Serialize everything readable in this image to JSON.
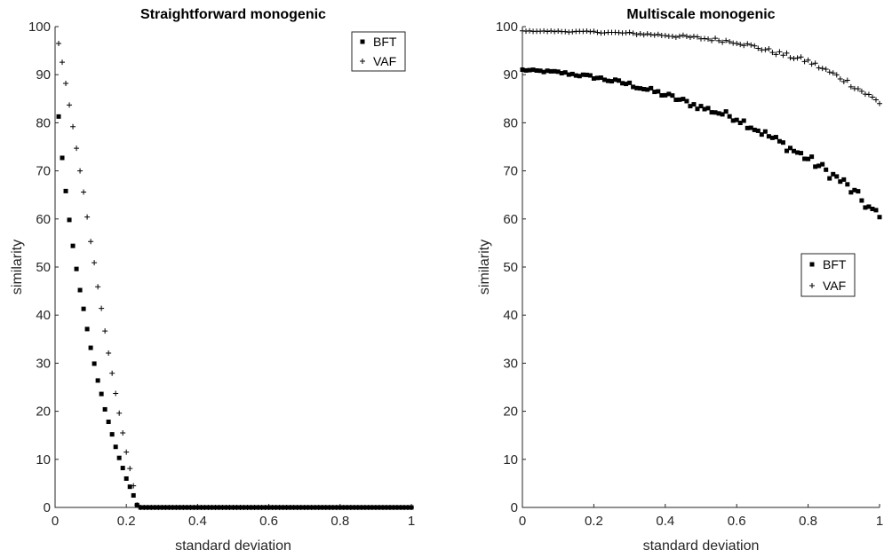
{
  "chart_data": [
    {
      "type": "scatter",
      "title": "Straightforward monogenic",
      "xlabel": "standard deviation",
      "ylabel": "similarity",
      "xlim": [
        0,
        1
      ],
      "ylim": [
        0,
        100
      ],
      "xticks": [
        "0",
        "0.2",
        "0.4",
        "0.6",
        "0.8",
        "1"
      ],
      "yticks": [
        "0",
        "10",
        "20",
        "30",
        "40",
        "50",
        "60",
        "70",
        "80",
        "90",
        "100"
      ],
      "legend_position": "top-right",
      "series": [
        {
          "name": "BFT",
          "marker": "square",
          "x": [
            0.01,
            0.02,
            0.03,
            0.04,
            0.05,
            0.06,
            0.07,
            0.08,
            0.09,
            0.1,
            0.11,
            0.12,
            0.13,
            0.14,
            0.15,
            0.16,
            0.17,
            0.18,
            0.19,
            0.2,
            0.21,
            0.22,
            0.23
          ],
          "y": [
            81.3,
            72.7,
            65.8,
            59.8,
            54.4,
            49.6,
            45.2,
            41.3,
            37.1,
            33.2,
            29.9,
            26.4,
            23.6,
            20.4,
            17.8,
            15.2,
            12.6,
            10.3,
            8.2,
            6.0,
            4.3,
            2.5,
            0.5
          ]
        },
        {
          "name": "VAF",
          "marker": "plus",
          "x": [
            0.01,
            0.02,
            0.03,
            0.04,
            0.05,
            0.06,
            0.07,
            0.08,
            0.09,
            0.1,
            0.11,
            0.12,
            0.13,
            0.14,
            0.15,
            0.16,
            0.17,
            0.18,
            0.19,
            0.2,
            0.21,
            0.22,
            0.23
          ],
          "y": [
            96.5,
            92.6,
            88.2,
            83.7,
            79.2,
            74.7,
            70.0,
            65.6,
            60.4,
            55.3,
            50.9,
            45.9,
            41.4,
            36.7,
            32.1,
            27.9,
            23.7,
            19.6,
            15.5,
            11.5,
            8.1,
            4.5,
            0.5
          ]
        }
      ],
      "tail": {
        "from": 0.24,
        "to": 1.0,
        "step": 0.01,
        "value": 0
      }
    },
    {
      "type": "scatter",
      "title": "Multiscale monogenic",
      "xlabel": "standard deviation",
      "ylabel": "similarity",
      "xlim": [
        0,
        1
      ],
      "ylim": [
        0,
        100
      ],
      "xticks": [
        "0",
        "0.2",
        "0.4",
        "0.6",
        "0.8",
        "1"
      ],
      "yticks": [
        "0",
        "10",
        "20",
        "30",
        "40",
        "50",
        "60",
        "70",
        "80",
        "90",
        "100"
      ],
      "legend_position": "right",
      "series": [
        {
          "name": "BFT",
          "marker": "square",
          "x": [
            0,
            0.1,
            0.2,
            0.3,
            0.4,
            0.5,
            0.6,
            0.7,
            0.8,
            0.9,
            1.0
          ],
          "y": [
            91.0,
            90.5,
            89.5,
            88.0,
            85.8,
            83.2,
            81.0,
            76.8,
            72.5,
            67.5,
            60.2
          ]
        },
        {
          "name": "VAF",
          "marker": "plus",
          "x": [
            0,
            0.1,
            0.2,
            0.3,
            0.4,
            0.5,
            0.6,
            0.7,
            0.8,
            0.9,
            1.0
          ],
          "y": [
            99.1,
            99.0,
            98.9,
            98.6,
            98.2,
            97.6,
            96.8,
            94.8,
            92.8,
            89.0,
            84.2
          ]
        }
      ]
    }
  ]
}
